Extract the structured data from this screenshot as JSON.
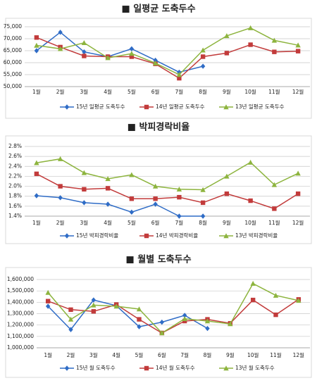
{
  "chart_data": [
    {
      "type": "line",
      "title": "■ 일평균 도축두수",
      "categories": [
        "1월",
        "2월",
        "3월",
        "4월",
        "5월",
        "6월",
        "7월",
        "8월",
        "9월",
        "10월",
        "11월",
        "12월"
      ],
      "ylim": [
        50000,
        75000
      ],
      "yticks": [
        {
          "value": 50000,
          "label": "50,000"
        },
        {
          "value": 55000,
          "label": "55,000"
        },
        {
          "value": 60000,
          "label": "60,000"
        },
        {
          "value": 65000,
          "label": "65,000"
        },
        {
          "value": 70000,
          "label": "70,000"
        },
        {
          "value": 75000,
          "label": "75,000"
        }
      ],
      "grid": true,
      "series": [
        {
          "name": "15년 일평균 도축두수",
          "color": "#2f6cc6",
          "marker": "diamond",
          "values": [
            65000,
            72700,
            64500,
            62500,
            65800,
            61000,
            56000,
            58500,
            null,
            null,
            null,
            null
          ]
        },
        {
          "name": "14년 일평균 도축두수",
          "color": "#c23b3b",
          "marker": "square",
          "values": [
            70500,
            66500,
            62800,
            62500,
            62500,
            59500,
            53500,
            62500,
            64000,
            67500,
            64500,
            64800
          ]
        },
        {
          "name": "13년 일평균 도축두수",
          "color": "#8db43e",
          "marker": "triangle",
          "values": [
            67200,
            65800,
            68300,
            62000,
            63800,
            59800,
            55000,
            65200,
            71200,
            74500,
            69300,
            67300
          ]
        }
      ]
    },
    {
      "type": "line",
      "title": "■ 박피경락비율",
      "categories": [
        "1월",
        "2월",
        "3월",
        "4월",
        "5월",
        "6월",
        "7월",
        "8월",
        "9월",
        "10월",
        "11월",
        "12월"
      ],
      "ylim": [
        1.4,
        2.8
      ],
      "yticks": [
        {
          "value": 1.4,
          "label": "1.4%"
        },
        {
          "value": 1.6,
          "label": "1.6%"
        },
        {
          "value": 1.8,
          "label": "1.8%"
        },
        {
          "value": 2.0,
          "label": "2.0%"
        },
        {
          "value": 2.2,
          "label": "2.2%"
        },
        {
          "value": 2.4,
          "label": "2.4%"
        },
        {
          "value": 2.6,
          "label": "2.6%"
        },
        {
          "value": 2.8,
          "label": "2.8%"
        }
      ],
      "grid": true,
      "series": [
        {
          "name": "15년 박피경락비율",
          "color": "#2f6cc6",
          "marker": "diamond",
          "values": [
            1.81,
            1.77,
            1.67,
            1.64,
            1.48,
            1.64,
            1.4,
            1.4,
            null,
            null,
            null,
            null
          ]
        },
        {
          "name": "14년 박피경락비율",
          "color": "#c23b3b",
          "marker": "square",
          "values": [
            2.25,
            2.0,
            1.94,
            1.96,
            1.75,
            1.75,
            1.78,
            1.67,
            1.85,
            1.71,
            1.55,
            1.85
          ]
        },
        {
          "name": "13년 박피경락비율",
          "color": "#8db43e",
          "marker": "triangle",
          "values": [
            2.47,
            2.55,
            2.27,
            2.15,
            2.23,
            2.0,
            1.94,
            1.93,
            2.2,
            2.48,
            2.03,
            2.26
          ]
        }
      ]
    },
    {
      "type": "line",
      "title": "■ 월별 도축두수",
      "categories": [
        "1월",
        "2월",
        "3월",
        "4월",
        "5월",
        "6월",
        "7월",
        "8월",
        "9월",
        "10월",
        "11월",
        "12월"
      ],
      "ylim": [
        1000000,
        1600000
      ],
      "yticks": [
        {
          "value": 1000000,
          "label": "1,000,000"
        },
        {
          "value": 1100000,
          "label": "1,100,000"
        },
        {
          "value": 1200000,
          "label": "1,200,000"
        },
        {
          "value": 1300000,
          "label": "1,300,000"
        },
        {
          "value": 1400000,
          "label": "1,400,000"
        },
        {
          "value": 1500000,
          "label": "1,500,000"
        },
        {
          "value": 1600000,
          "label": "1,600,000"
        }
      ],
      "grid": true,
      "series": [
        {
          "name": "15년 월 도축두수",
          "color": "#2f6cc6",
          "marker": "diamond",
          "values": [
            1365000,
            1160000,
            1420000,
            1370000,
            1185000,
            1225000,
            1285000,
            1170000,
            null,
            null,
            null,
            null
          ]
        },
        {
          "name": "14년 월 도축두수",
          "color": "#c23b3b",
          "marker": "square",
          "values": [
            1410000,
            1335000,
            1320000,
            1380000,
            1250000,
            1130000,
            1235000,
            1250000,
            1215000,
            1420000,
            1290000,
            1425000
          ]
        },
        {
          "name": "13년 월 도축두수",
          "color": "#8db43e",
          "marker": "triangle",
          "values": [
            1485000,
            1250000,
            1375000,
            1365000,
            1340000,
            1130000,
            1255000,
            1235000,
            1210000,
            1565000,
            1460000,
            1415000
          ]
        }
      ]
    }
  ]
}
